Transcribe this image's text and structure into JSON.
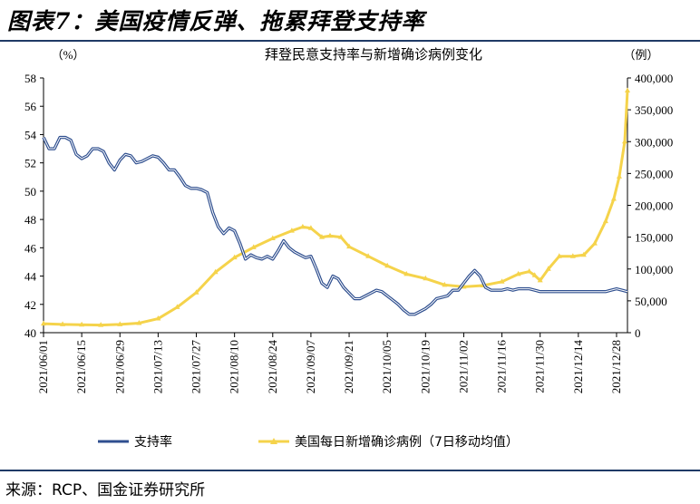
{
  "figure_title": "图表7：美国疫情反弹、拖累拜登支持率",
  "source": "来源：RCP、国金证券研究所",
  "chart_data": {
    "type": "line",
    "title": "拜登民意支持率与新增确诊病例变化",
    "left_unit": "（%）",
    "right_unit": "（例）",
    "left_ylim": [
      40,
      58
    ],
    "left_ticks": [
      "40",
      "42",
      "44",
      "46",
      "48",
      "50",
      "52",
      "54",
      "56",
      "58"
    ],
    "right_ylim": [
      0,
      400000
    ],
    "right_ticks": [
      "0",
      "50,000",
      "100,000",
      "150,000",
      "200,000",
      "250,000",
      "300,000",
      "350,000",
      "400,000"
    ],
    "x_ticks": [
      "2021/06/01",
      "2021/06/15",
      "2021/06/29",
      "2021/07/13",
      "2021/07/27",
      "2021/08/10",
      "2021/08/24",
      "2021/09/07",
      "2021/09/21",
      "2021/10/05",
      "2021/10/19",
      "2021/11/02",
      "2021/11/16",
      "2021/11/30",
      "2021/12/14",
      "2021/12/28"
    ],
    "series": [
      {
        "name": "支持率",
        "axis": "left",
        "color": "#2f4f8f",
        "x": [
          "2021/06/01",
          "2021/06/03",
          "2021/06/05",
          "2021/06/07",
          "2021/06/09",
          "2021/06/11",
          "2021/06/13",
          "2021/06/15",
          "2021/06/17",
          "2021/06/19",
          "2021/06/21",
          "2021/06/23",
          "2021/06/25",
          "2021/06/27",
          "2021/06/29",
          "2021/07/01",
          "2021/07/03",
          "2021/07/05",
          "2021/07/07",
          "2021/07/09",
          "2021/07/11",
          "2021/07/13",
          "2021/07/15",
          "2021/07/17",
          "2021/07/19",
          "2021/07/21",
          "2021/07/23",
          "2021/07/25",
          "2021/07/27",
          "2021/07/29",
          "2021/07/31",
          "2021/08/02",
          "2021/08/04",
          "2021/08/06",
          "2021/08/08",
          "2021/08/10",
          "2021/08/12",
          "2021/08/14",
          "2021/08/16",
          "2021/08/18",
          "2021/08/20",
          "2021/08/22",
          "2021/08/24",
          "2021/08/26",
          "2021/08/28",
          "2021/08/30",
          "2021/09/01",
          "2021/09/03",
          "2021/09/05",
          "2021/09/07",
          "2021/09/09",
          "2021/09/11",
          "2021/09/13",
          "2021/09/15",
          "2021/09/17",
          "2021/09/19",
          "2021/09/21",
          "2021/09/23",
          "2021/09/25",
          "2021/09/27",
          "2021/09/29",
          "2021/10/01",
          "2021/10/03",
          "2021/10/05",
          "2021/10/07",
          "2021/10/09",
          "2021/10/11",
          "2021/10/13",
          "2021/10/15",
          "2021/10/17",
          "2021/10/19",
          "2021/10/21",
          "2021/10/23",
          "2021/10/25",
          "2021/10/27",
          "2021/10/29",
          "2021/10/31",
          "2021/11/02",
          "2021/11/04",
          "2021/11/06",
          "2021/11/08",
          "2021/11/10",
          "2021/11/12",
          "2021/11/14",
          "2021/11/16",
          "2021/11/18",
          "2021/11/20",
          "2021/11/22",
          "2021/11/24",
          "2021/11/26",
          "2021/11/28",
          "2021/11/30",
          "2021/12/02",
          "2021/12/04",
          "2021/12/06",
          "2021/12/08",
          "2021/12/10",
          "2021/12/12",
          "2021/12/14",
          "2021/12/16",
          "2021/12/18",
          "2021/12/20",
          "2021/12/22",
          "2021/12/24",
          "2021/12/26",
          "2021/12/28",
          "2021/12/30",
          "2022/01/01"
        ],
        "values": [
          53.8,
          53.0,
          53.0,
          53.8,
          53.8,
          53.6,
          52.6,
          52.3,
          52.5,
          53.0,
          53.0,
          52.8,
          52.0,
          51.5,
          52.2,
          52.6,
          52.5,
          52.0,
          52.1,
          52.3,
          52.5,
          52.4,
          52.0,
          51.5,
          51.5,
          51.0,
          50.4,
          50.2,
          50.2,
          50.1,
          49.9,
          48.5,
          47.5,
          47.0,
          47.4,
          47.2,
          46.3,
          45.2,
          45.5,
          45.3,
          45.2,
          45.4,
          45.2,
          45.8,
          46.5,
          46.0,
          45.7,
          45.5,
          45.3,
          45.4,
          44.5,
          43.5,
          43.2,
          44.0,
          43.8,
          43.2,
          42.8,
          42.4,
          42.4,
          42.6,
          42.8,
          43.0,
          42.9,
          42.6,
          42.3,
          42.0,
          41.6,
          41.3,
          41.3,
          41.5,
          41.7,
          42.0,
          42.4,
          42.5,
          42.6,
          43.0,
          43.0,
          43.5,
          44.0,
          44.4,
          44.0,
          43.2,
          43.0,
          43.0,
          43.0,
          43.1,
          43.0,
          43.1,
          43.1,
          43.1,
          43.0,
          42.9,
          42.9,
          42.9,
          42.9,
          42.9,
          42.9,
          42.9,
          42.9,
          42.9,
          42.9,
          42.9,
          42.9,
          42.9,
          43.0,
          43.1,
          43.0,
          42.9
        ]
      },
      {
        "name": "美国每日新增确诊病例（7日移动均值）",
        "axis": "right",
        "color": "#f5d34b",
        "x": [
          "2021/06/01",
          "2021/06/08",
          "2021/06/15",
          "2021/06/22",
          "2021/06/29",
          "2021/07/06",
          "2021/07/13",
          "2021/07/20",
          "2021/07/27",
          "2021/08/03",
          "2021/08/10",
          "2021/08/17",
          "2021/08/24",
          "2021/08/31",
          "2021/09/04",
          "2021/09/07",
          "2021/09/11",
          "2021/09/14",
          "2021/09/18",
          "2021/09/21",
          "2021/09/28",
          "2021/10/05",
          "2021/10/12",
          "2021/10/19",
          "2021/10/26",
          "2021/11/02",
          "2021/11/09",
          "2021/11/16",
          "2021/11/22",
          "2021/11/26",
          "2021/11/28",
          "2021/11/30",
          "2021/12/03",
          "2021/12/07",
          "2021/12/12",
          "2021/12/16",
          "2021/12/20",
          "2021/12/24",
          "2021/12/27",
          "2021/12/29",
          "2021/12/31",
          "2022/01/01"
        ],
        "values": [
          14000,
          13000,
          12500,
          12000,
          13000,
          15000,
          22000,
          40000,
          63000,
          95000,
          118000,
          134000,
          148000,
          160000,
          166000,
          164000,
          150000,
          152000,
          150000,
          135000,
          120000,
          105000,
          92000,
          85000,
          75000,
          72000,
          74000,
          80000,
          92000,
          96000,
          90000,
          82000,
          100000,
          120000,
          120000,
          122000,
          140000,
          175000,
          210000,
          245000,
          300000,
          380000
        ]
      }
    ],
    "legend_position": "bottom",
    "grid": false
  }
}
